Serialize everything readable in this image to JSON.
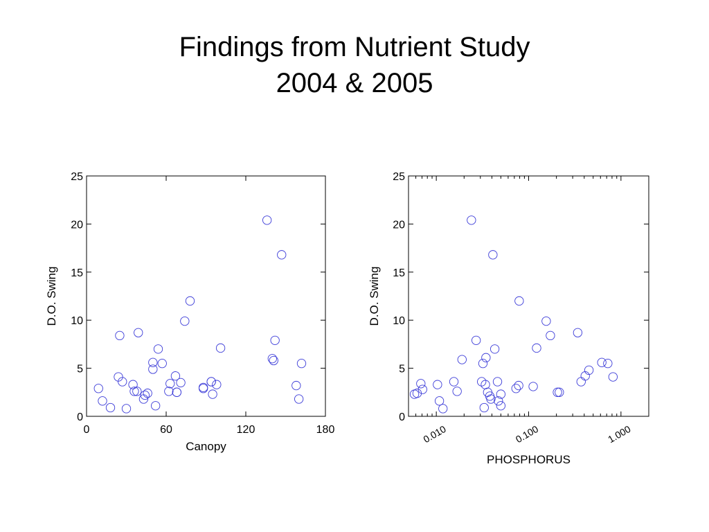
{
  "slide": {
    "title_line1": "Findings from Nutrient Study",
    "title_line2": "2004 & 2005"
  },
  "colors": {
    "marker": "#3b3bd8",
    "axes": "#000000",
    "background": "#ffffff"
  },
  "chart_data": [
    {
      "type": "scatter",
      "title": "",
      "xlabel": "Canopy",
      "ylabel": "D.O. Swing",
      "xscale": "linear",
      "xlim": [
        0,
        180
      ],
      "ylim": [
        0,
        25
      ],
      "xticks": [
        0,
        60,
        120,
        180
      ],
      "xtick_labels": [
        "0",
        "60",
        "120",
        "180"
      ],
      "yticks": [
        0,
        5,
        10,
        15,
        20,
        25
      ],
      "ytick_labels": [
        "0",
        "5",
        "10",
        "15",
        "20",
        "25"
      ],
      "grid": false,
      "marker": "open-circle",
      "points": [
        {
          "x": 9,
          "y": 2.9
        },
        {
          "x": 12,
          "y": 1.6
        },
        {
          "x": 18,
          "y": 0.9
        },
        {
          "x": 24,
          "y": 4.1
        },
        {
          "x": 25,
          "y": 8.4
        },
        {
          "x": 27,
          "y": 3.6
        },
        {
          "x": 30,
          "y": 0.8
        },
        {
          "x": 35,
          "y": 3.3
        },
        {
          "x": 36,
          "y": 2.6
        },
        {
          "x": 38,
          "y": 2.6
        },
        {
          "x": 39,
          "y": 8.7
        },
        {
          "x": 43,
          "y": 1.8
        },
        {
          "x": 44,
          "y": 2.2
        },
        {
          "x": 46,
          "y": 2.4
        },
        {
          "x": 50,
          "y": 5.6
        },
        {
          "x": 50,
          "y": 4.9
        },
        {
          "x": 52,
          "y": 1.1
        },
        {
          "x": 54,
          "y": 7.0
        },
        {
          "x": 57,
          "y": 5.5
        },
        {
          "x": 62,
          "y": 2.6
        },
        {
          "x": 63,
          "y": 3.4
        },
        {
          "x": 67,
          "y": 4.2
        },
        {
          "x": 68,
          "y": 2.5
        },
        {
          "x": 68,
          "y": 2.5
        },
        {
          "x": 71,
          "y": 3.5
        },
        {
          "x": 74,
          "y": 9.9
        },
        {
          "x": 78,
          "y": 12.0
        },
        {
          "x": 88,
          "y": 3.0
        },
        {
          "x": 88,
          "y": 2.9
        },
        {
          "x": 94,
          "y": 3.6
        },
        {
          "x": 94,
          "y": 3.6
        },
        {
          "x": 95,
          "y": 2.3
        },
        {
          "x": 98,
          "y": 3.3
        },
        {
          "x": 101,
          "y": 7.1
        },
        {
          "x": 136,
          "y": 20.4
        },
        {
          "x": 140,
          "y": 6.0
        },
        {
          "x": 141,
          "y": 5.8
        },
        {
          "x": 142,
          "y": 7.9
        },
        {
          "x": 147,
          "y": 16.8
        },
        {
          "x": 158,
          "y": 3.2
        },
        {
          "x": 160,
          "y": 1.8
        },
        {
          "x": 162,
          "y": 5.5
        }
      ]
    },
    {
      "type": "scatter",
      "title": "",
      "xlabel": "PHOSPHORUS",
      "ylabel": "D.O. Swing",
      "xscale": "log",
      "xlim": [
        0.005,
        2
      ],
      "ylim": [
        0,
        25
      ],
      "xticks": [
        0.01,
        0.1,
        1
      ],
      "xtick_labels": [
        "0.010",
        "0.100",
        "1.000"
      ],
      "yticks": [
        0,
        5,
        10,
        15,
        20,
        25
      ],
      "ytick_labels": [
        "0",
        "5",
        "10",
        "15",
        "20",
        "25"
      ],
      "grid": false,
      "marker": "open-circle",
      "points": [
        {
          "x": 0.0058,
          "y": 2.3
        },
        {
          "x": 0.0062,
          "y": 2.4
        },
        {
          "x": 0.0068,
          "y": 3.4
        },
        {
          "x": 0.0071,
          "y": 2.8
        },
        {
          "x": 0.0103,
          "y": 3.3
        },
        {
          "x": 0.0108,
          "y": 1.6
        },
        {
          "x": 0.0118,
          "y": 0.8
        },
        {
          "x": 0.0155,
          "y": 3.6
        },
        {
          "x": 0.0168,
          "y": 2.6
        },
        {
          "x": 0.019,
          "y": 5.9
        },
        {
          "x": 0.024,
          "y": 20.4
        },
        {
          "x": 0.027,
          "y": 7.9
        },
        {
          "x": 0.031,
          "y": 3.6
        },
        {
          "x": 0.032,
          "y": 5.5
        },
        {
          "x": 0.033,
          "y": 0.9
        },
        {
          "x": 0.034,
          "y": 3.3
        },
        {
          "x": 0.0345,
          "y": 6.1
        },
        {
          "x": 0.036,
          "y": 2.5
        },
        {
          "x": 0.038,
          "y": 2.1
        },
        {
          "x": 0.039,
          "y": 1.8
        },
        {
          "x": 0.041,
          "y": 16.8
        },
        {
          "x": 0.043,
          "y": 7.0
        },
        {
          "x": 0.046,
          "y": 3.6
        },
        {
          "x": 0.047,
          "y": 1.6
        },
        {
          "x": 0.05,
          "y": 2.3
        },
        {
          "x": 0.05,
          "y": 1.1
        },
        {
          "x": 0.073,
          "y": 2.9
        },
        {
          "x": 0.078,
          "y": 3.2
        },
        {
          "x": 0.079,
          "y": 12.0
        },
        {
          "x": 0.112,
          "y": 3.1
        },
        {
          "x": 0.122,
          "y": 7.1
        },
        {
          "x": 0.155,
          "y": 9.9
        },
        {
          "x": 0.172,
          "y": 8.4
        },
        {
          "x": 0.205,
          "y": 2.5
        },
        {
          "x": 0.215,
          "y": 2.5
        },
        {
          "x": 0.34,
          "y": 8.7
        },
        {
          "x": 0.37,
          "y": 3.6
        },
        {
          "x": 0.41,
          "y": 4.2
        },
        {
          "x": 0.45,
          "y": 4.8
        },
        {
          "x": 0.62,
          "y": 5.6
        },
        {
          "x": 0.72,
          "y": 5.5
        },
        {
          "x": 0.82,
          "y": 4.1
        }
      ]
    }
  ]
}
